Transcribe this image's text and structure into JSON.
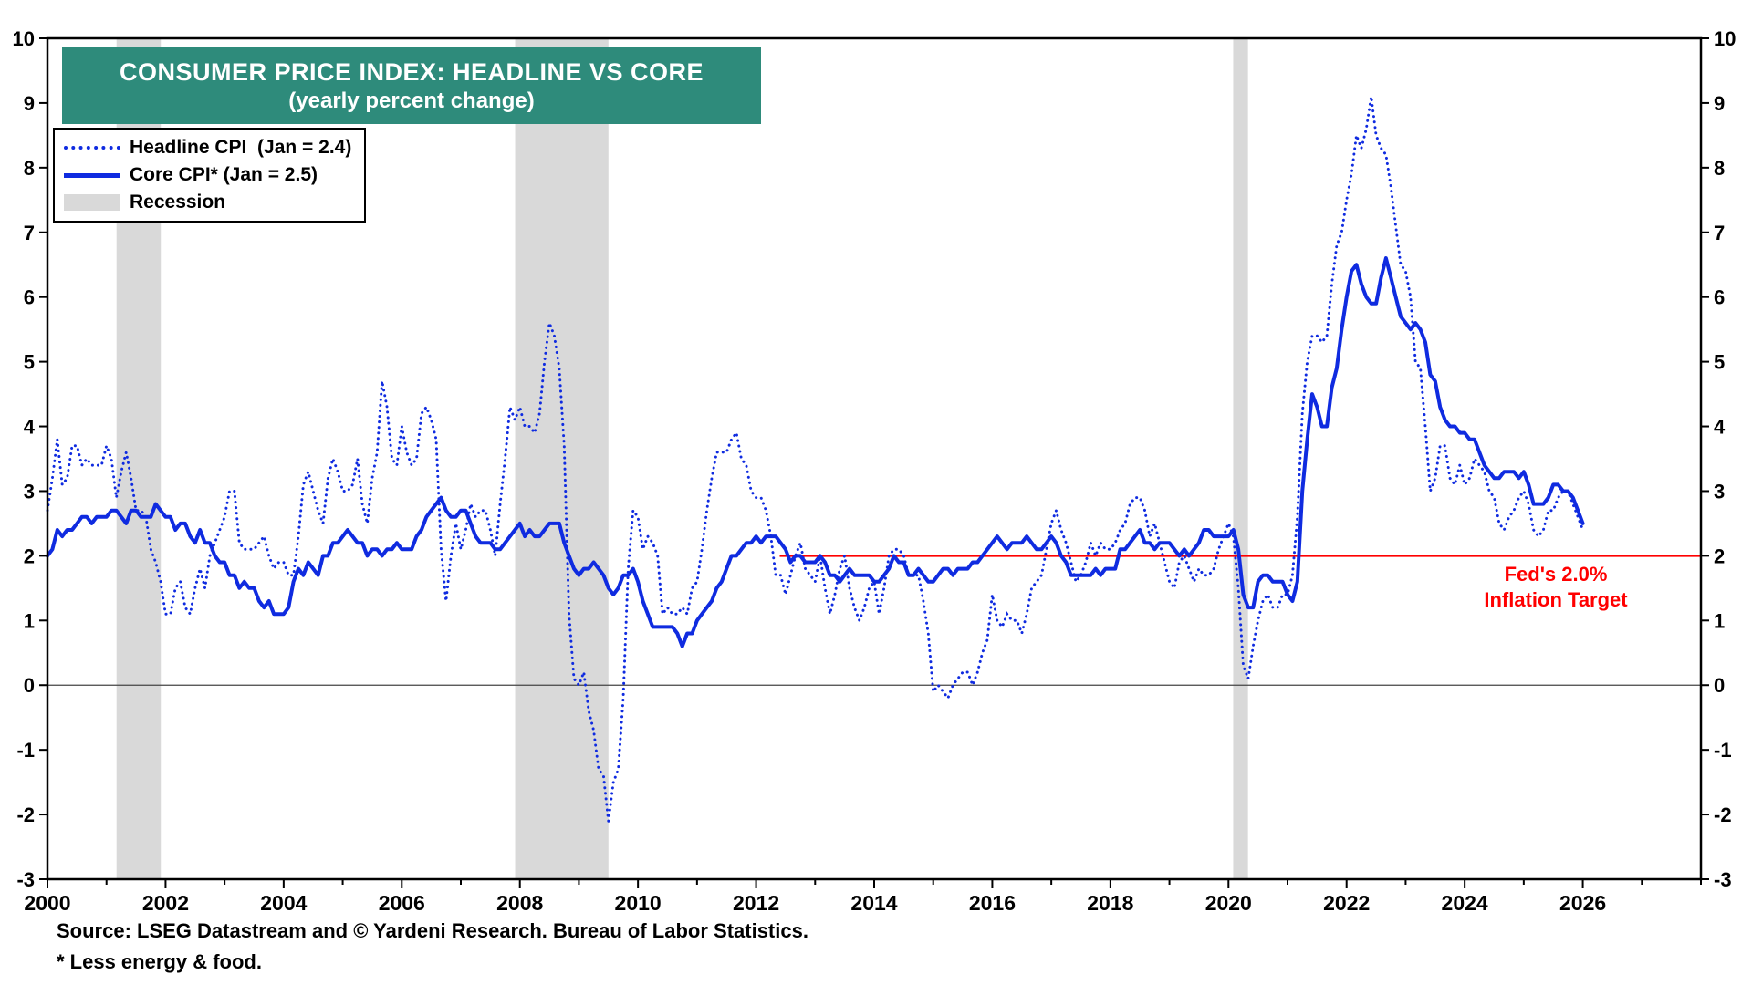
{
  "title": {
    "line1": "CONSUMER PRICE INDEX: HEADLINE VS CORE",
    "line2": "(yearly percent change)"
  },
  "legend": {
    "headline_label": "Headline CPI  (Jan = 2.4)",
    "core_label": "Core CPI* (Jan = 2.5)",
    "recession_label": "Recession"
  },
  "annotation": {
    "line1": "Fed's 2.0%",
    "line2": "Inflation Target"
  },
  "footer": {
    "source": "Source: LSEG Datastream and © Yardeni Research. Bureau of Labor Statistics.",
    "note": "* Less energy & food."
  },
  "colors": {
    "series_blue": "#0f2be0",
    "title_teal": "#2e8b7b",
    "recession_gray": "#d9d9d9",
    "target_red": "#ff0000",
    "axis_black": "#000000"
  },
  "chart_data": {
    "type": "line",
    "title": "CONSUMER PRICE INDEX: HEADLINE VS CORE",
    "subtitle": "(yearly percent change)",
    "xlabel": "",
    "ylabel": "yearly percent change",
    "xlim": [
      2000,
      2028
    ],
    "ylim": [
      -3,
      10
    ],
    "x_ticks": [
      2000,
      2002,
      2004,
      2006,
      2008,
      2010,
      2012,
      2014,
      2016,
      2018,
      2020,
      2022,
      2024,
      2026
    ],
    "y_ticks": [
      -3,
      -2,
      -1,
      0,
      1,
      2,
      3,
      4,
      5,
      6,
      7,
      8,
      9,
      10
    ],
    "grid": false,
    "legend_position": "top-left",
    "x_start": 2000.0,
    "x_step_months": 1,
    "zero_line": 0,
    "ref_line": {
      "y": 2.0,
      "x_start": 2012.4,
      "label": "Fed's 2.0% Inflation Target"
    },
    "recessions": [
      [
        2001.17,
        2001.92
      ],
      [
        2007.92,
        2009.5
      ],
      [
        2020.08,
        2020.33
      ]
    ],
    "series": [
      {
        "name": "Headline CPI  (Jan = 2.4)",
        "style": "dotted",
        "values": [
          2.7,
          3.2,
          3.8,
          3.1,
          3.2,
          3.7,
          3.7,
          3.4,
          3.5,
          3.4,
          3.4,
          3.4,
          3.7,
          3.5,
          2.9,
          3.3,
          3.6,
          3.2,
          2.7,
          2.7,
          2.6,
          2.1,
          1.9,
          1.6,
          1.1,
          1.1,
          1.5,
          1.6,
          1.2,
          1.1,
          1.5,
          1.8,
          1.5,
          2.0,
          2.2,
          2.4,
          2.6,
          3.0,
          3.0,
          2.2,
          2.1,
          2.1,
          2.1,
          2.2,
          2.3,
          2.0,
          1.8,
          1.9,
          1.9,
          1.7,
          1.7,
          2.3,
          3.1,
          3.3,
          3.0,
          2.7,
          2.5,
          3.2,
          3.5,
          3.3,
          3.0,
          3.0,
          3.1,
          3.5,
          2.8,
          2.5,
          3.2,
          3.6,
          4.7,
          4.3,
          3.5,
          3.4,
          4.0,
          3.6,
          3.4,
          3.5,
          4.2,
          4.3,
          4.1,
          3.8,
          2.1,
          1.3,
          2.0,
          2.5,
          2.1,
          2.4,
          2.8,
          2.6,
          2.7,
          2.7,
          2.4,
          2.0,
          2.8,
          3.5,
          4.3,
          4.1,
          4.3,
          4.0,
          4.0,
          3.9,
          4.2,
          5.0,
          5.6,
          5.4,
          4.9,
          3.7,
          1.1,
          0.1,
          0.0,
          0.2,
          -0.4,
          -0.7,
          -1.3,
          -1.4,
          -2.1,
          -1.5,
          -1.3,
          -0.2,
          1.8,
          2.7,
          2.6,
          2.1,
          2.3,
          2.2,
          2.0,
          1.1,
          1.2,
          1.1,
          1.1,
          1.2,
          1.1,
          1.5,
          1.6,
          2.1,
          2.7,
          3.2,
          3.6,
          3.6,
          3.6,
          3.8,
          3.9,
          3.5,
          3.4,
          3.0,
          2.9,
          2.9,
          2.7,
          2.3,
          1.7,
          1.7,
          1.4,
          1.7,
          2.0,
          2.2,
          1.8,
          1.7,
          1.6,
          2.0,
          1.5,
          1.1,
          1.4,
          1.8,
          2.0,
          1.5,
          1.2,
          1.0,
          1.2,
          1.5,
          1.6,
          1.1,
          1.5,
          2.0,
          2.1,
          2.1,
          2.0,
          1.7,
          1.7,
          1.7,
          1.3,
          0.8,
          -0.1,
          0.0,
          -0.1,
          -0.2,
          0.0,
          0.1,
          0.2,
          0.2,
          0.0,
          0.2,
          0.5,
          0.7,
          1.4,
          1.0,
          0.9,
          1.1,
          1.0,
          1.0,
          0.8,
          1.1,
          1.5,
          1.6,
          1.7,
          2.1,
          2.5,
          2.7,
          2.4,
          2.2,
          1.9,
          1.6,
          1.7,
          1.9,
          2.2,
          2.0,
          2.2,
          2.1,
          2.1,
          2.2,
          2.4,
          2.5,
          2.8,
          2.9,
          2.9,
          2.7,
          2.3,
          2.5,
          2.2,
          1.9,
          1.6,
          1.5,
          1.9,
          2.0,
          1.8,
          1.6,
          1.8,
          1.7,
          1.7,
          1.8,
          2.1,
          2.3,
          2.5,
          2.3,
          1.5,
          0.3,
          0.1,
          0.6,
          1.0,
          1.3,
          1.4,
          1.2,
          1.2,
          1.4,
          1.4,
          1.7,
          2.6,
          4.2,
          5.0,
          5.4,
          5.4,
          5.3,
          5.4,
          6.2,
          6.8,
          7.0,
          7.5,
          7.9,
          8.5,
          8.3,
          8.6,
          9.1,
          8.5,
          8.3,
          8.2,
          7.7,
          7.1,
          6.5,
          6.4,
          6.0,
          5.0,
          4.9,
          4.0,
          3.0,
          3.2,
          3.7,
          3.7,
          3.2,
          3.1,
          3.4,
          3.1,
          3.2,
          3.5,
          3.4,
          3.3,
          3.0,
          2.9,
          2.5,
          2.4,
          2.6,
          2.7,
          2.9,
          3.0,
          2.8,
          2.4,
          2.3,
          2.4,
          2.7,
          2.7,
          2.9,
          3.0,
          3.0,
          2.8,
          2.6,
          2.4
        ]
      },
      {
        "name": "Core CPI* (Jan = 2.5)",
        "style": "solid",
        "values": [
          2.0,
          2.1,
          2.4,
          2.3,
          2.4,
          2.4,
          2.5,
          2.6,
          2.6,
          2.5,
          2.6,
          2.6,
          2.6,
          2.7,
          2.7,
          2.6,
          2.5,
          2.7,
          2.7,
          2.6,
          2.6,
          2.6,
          2.8,
          2.7,
          2.6,
          2.6,
          2.4,
          2.5,
          2.5,
          2.3,
          2.2,
          2.4,
          2.2,
          2.2,
          2.0,
          1.9,
          1.9,
          1.7,
          1.7,
          1.5,
          1.6,
          1.5,
          1.5,
          1.3,
          1.2,
          1.3,
          1.1,
          1.1,
          1.1,
          1.2,
          1.6,
          1.8,
          1.7,
          1.9,
          1.8,
          1.7,
          2.0,
          2.0,
          2.2,
          2.2,
          2.3,
          2.4,
          2.3,
          2.2,
          2.2,
          2.0,
          2.1,
          2.1,
          2.0,
          2.1,
          2.1,
          2.2,
          2.1,
          2.1,
          2.1,
          2.3,
          2.4,
          2.6,
          2.7,
          2.8,
          2.9,
          2.7,
          2.6,
          2.6,
          2.7,
          2.7,
          2.5,
          2.3,
          2.2,
          2.2,
          2.2,
          2.1,
          2.1,
          2.2,
          2.3,
          2.4,
          2.5,
          2.3,
          2.4,
          2.3,
          2.3,
          2.4,
          2.5,
          2.5,
          2.5,
          2.2,
          2.0,
          1.8,
          1.7,
          1.8,
          1.8,
          1.9,
          1.8,
          1.7,
          1.5,
          1.4,
          1.5,
          1.7,
          1.7,
          1.8,
          1.6,
          1.3,
          1.1,
          0.9,
          0.9,
          0.9,
          0.9,
          0.9,
          0.8,
          0.6,
          0.8,
          0.8,
          1.0,
          1.1,
          1.2,
          1.3,
          1.5,
          1.6,
          1.8,
          2.0,
          2.0,
          2.1,
          2.2,
          2.2,
          2.3,
          2.2,
          2.3,
          2.3,
          2.3,
          2.2,
          2.1,
          1.9,
          2.0,
          2.0,
          1.9,
          1.9,
          1.9,
          2.0,
          1.9,
          1.7,
          1.7,
          1.6,
          1.7,
          1.8,
          1.7,
          1.7,
          1.7,
          1.7,
          1.6,
          1.6,
          1.7,
          1.8,
          2.0,
          1.9,
          1.9,
          1.7,
          1.7,
          1.8,
          1.7,
          1.6,
          1.6,
          1.7,
          1.8,
          1.8,
          1.7,
          1.8,
          1.8,
          1.8,
          1.9,
          1.9,
          2.0,
          2.1,
          2.2,
          2.3,
          2.2,
          2.1,
          2.2,
          2.2,
          2.2,
          2.3,
          2.2,
          2.1,
          2.1,
          2.2,
          2.3,
          2.2,
          2.0,
          1.9,
          1.7,
          1.7,
          1.7,
          1.7,
          1.7,
          1.8,
          1.7,
          1.8,
          1.8,
          1.8,
          2.1,
          2.1,
          2.2,
          2.3,
          2.4,
          2.2,
          2.2,
          2.1,
          2.2,
          2.2,
          2.2,
          2.1,
          2.0,
          2.1,
          2.0,
          2.1,
          2.2,
          2.4,
          2.4,
          2.3,
          2.3,
          2.3,
          2.3,
          2.4,
          2.1,
          1.4,
          1.2,
          1.2,
          1.6,
          1.7,
          1.7,
          1.6,
          1.6,
          1.6,
          1.4,
          1.3,
          1.6,
          3.0,
          3.8,
          4.5,
          4.3,
          4.0,
          4.0,
          4.6,
          4.9,
          5.5,
          6.0,
          6.4,
          6.5,
          6.2,
          6.0,
          5.9,
          5.9,
          6.3,
          6.6,
          6.3,
          6.0,
          5.7,
          5.6,
          5.5,
          5.6,
          5.5,
          5.3,
          4.8,
          4.7,
          4.3,
          4.1,
          4.0,
          4.0,
          3.9,
          3.9,
          3.8,
          3.8,
          3.6,
          3.4,
          3.3,
          3.2,
          3.2,
          3.3,
          3.3,
          3.3,
          3.2,
          3.3,
          3.1,
          2.8,
          2.8,
          2.8,
          2.9,
          3.1,
          3.1,
          3.0,
          3.0,
          2.9,
          2.7,
          2.5
        ]
      }
    ]
  }
}
